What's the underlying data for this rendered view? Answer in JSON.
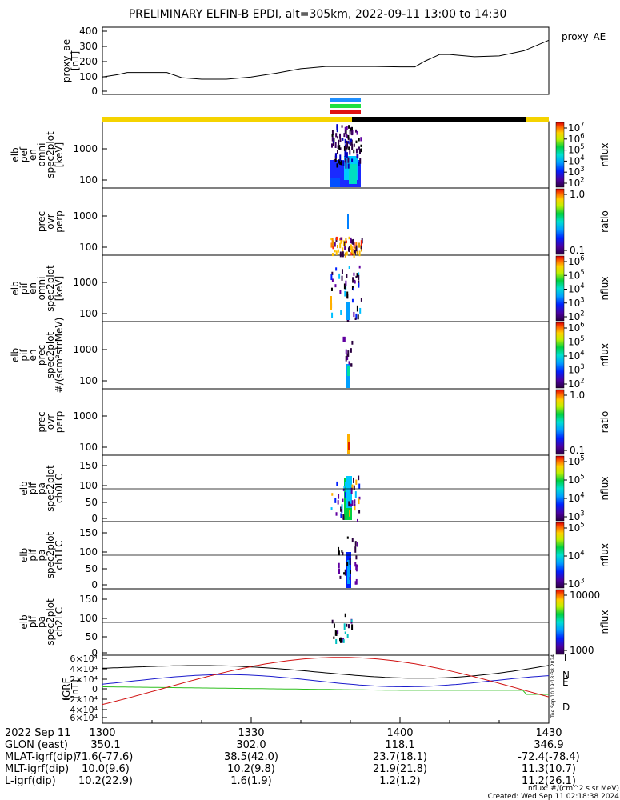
{
  "title": "PRELIMINARY ELFIN-B EPDI, alt=305km, 2022-09-11 13:00 to 14:30",
  "chart_data": {
    "type": "line",
    "x_range_minutes": [
      1300,
      1430
    ],
    "panels": [
      {
        "id": "ae",
        "ylabel": [
          "proxy_ae",
          "[nT]"
        ],
        "yticks": [
          "400",
          "300",
          "200",
          "100",
          "0"
        ],
        "legend": "proxy_AE",
        "series": [
          {
            "name": "proxy_AE",
            "x": [
              "13:00",
              "13:03",
              "13:05",
              "13:13",
              "13:16",
              "13:20",
              "13:25",
              "13:30",
              "13:35",
              "13:40",
              "13:45",
              "13:50",
              "13:55",
              "14:00",
              "14:03",
              "14:05",
              "14:08",
              "14:10",
              "14:15",
              "14:20",
              "14:25",
              "14:30"
            ],
            "y": [
              95,
              110,
              125,
              125,
              90,
              80,
              80,
              95,
              120,
              150,
              165,
              165,
              165,
              162,
              162,
              200,
              245,
              245,
              230,
              235,
              270,
              340
            ]
          }
        ]
      },
      {
        "id": "elb_perp",
        "ylabel": [
          "elb",
          "pef",
          "en",
          "omni",
          "spec2plot",
          "[keV]"
        ],
        "yticks": [
          "1000",
          "100"
        ],
        "colorbar": {
          "ticks": [
            "10^7",
            "10^6",
            "10^5",
            "10^4",
            "10^3",
            "10^2"
          ],
          "label": "nflux"
        }
      },
      {
        "id": "prec_ovr_perp",
        "ylabel": [
          "prec",
          "ovr",
          "perp"
        ],
        "yticks": [
          "1000",
          "100"
        ],
        "colorbar": {
          "ticks": [
            "1.0",
            "0.1"
          ],
          "label": "ratio"
        }
      },
      {
        "id": "elb_pif_omni",
        "ylabel": [
          "elb",
          "pif",
          "en",
          "omni",
          "spec2plot",
          "[keV]"
        ],
        "yticks": [
          "1000",
          "100"
        ],
        "colorbar": {
          "ticks": [
            "10^6",
            "10^5",
            "10^4",
            "10^3",
            "10^2"
          ],
          "label": "nflux"
        }
      },
      {
        "id": "elb_pif_prec",
        "ylabel": [
          "elb",
          "pif",
          "en",
          "prec",
          "spec2plot",
          "#/(scm²strMeV)"
        ],
        "yticks": [
          "1000",
          "100"
        ],
        "colorbar": {
          "ticks": [
            "10^6",
            "10^5",
            "10^4",
            "10^3",
            "10^2"
          ],
          "label": "nflux"
        }
      },
      {
        "id": "prec_ovr_perp2",
        "ylabel": [
          "prec",
          "ovr",
          "perp"
        ],
        "yticks": [
          "1000",
          "100"
        ],
        "colorbar": {
          "ticks": [
            "1.0",
            "0.1"
          ],
          "label": "ratio"
        }
      },
      {
        "id": "pa_ch0",
        "ylabel": [
          "elb",
          "pif",
          "pa",
          "spec2plot",
          "ch0LC"
        ],
        "yticks": [
          "150",
          "100",
          "50",
          "0"
        ],
        "colorbar": {
          "ticks": [
            "10^5",
            "10^5",
            "10^4",
            "10^3"
          ],
          "label": "nflux"
        }
      },
      {
        "id": "pa_ch1",
        "ylabel": [
          "elb",
          "pif",
          "pa",
          "spec2plot",
          "ch1LC"
        ],
        "yticks": [
          "150",
          "100",
          "50",
          "0"
        ],
        "colorbar": {
          "ticks": [
            "10^5",
            "10^4",
            "10^3"
          ],
          "label": "nflux"
        }
      },
      {
        "id": "pa_ch2",
        "ylabel": [
          "elb",
          "pif",
          "pa",
          "spec2plot",
          "ch2LC"
        ],
        "yticks": [
          "150",
          "100",
          "50",
          "0"
        ],
        "colorbar": {
          "ticks": [
            "10000",
            "1000"
          ],
          "label": "nflux"
        }
      },
      {
        "id": "igrf",
        "ylabel": [
          "IGRF",
          "[nT]"
        ],
        "yticks": [
          "6×10⁴",
          "4×10⁴",
          "2×10⁴",
          "0",
          "−2×10⁴",
          "−4×10⁴",
          "−6×10⁴"
        ],
        "legend": [
          "T",
          "N",
          "E",
          "D"
        ],
        "colors": {
          "T": "#000000",
          "N": "#1a1acc",
          "E": "#2fbf1f",
          "D": "#d01010"
        }
      }
    ]
  },
  "footer": {
    "date": "2022 Sep 11",
    "rows": [
      {
        "label": "GLON (east)",
        "values": [
          "350.1",
          "302.0",
          "118.1",
          "346.9"
        ]
      },
      {
        "label": "MLAT-igrf(dip)",
        "values": [
          "71.6(-77.6)",
          "38.5(42.0)",
          "23.7(18.1)",
          "-72.4(-78.4)"
        ]
      },
      {
        "label": "MLT-igrf(dip)",
        "values": [
          "10.0(9.6)",
          "10.2(9.8)",
          "21.9(21.8)",
          "11.3(10.7)"
        ]
      },
      {
        "label": "L-igrf(dip)",
        "values": [
          "10.2(22.9)",
          "1.6(1.9)",
          "1.2(1.2)",
          "11.2(26.1)"
        ]
      }
    ],
    "times": [
      "1300",
      "1330",
      "1400",
      "1430"
    ],
    "nflux_note": "nflux: #/(cm^2 s sr MeV)",
    "created": "Created: Wed Sep 11 02:18:38 2024",
    "side_stamp": "Tue Sep 10 19:18:38 2024"
  }
}
